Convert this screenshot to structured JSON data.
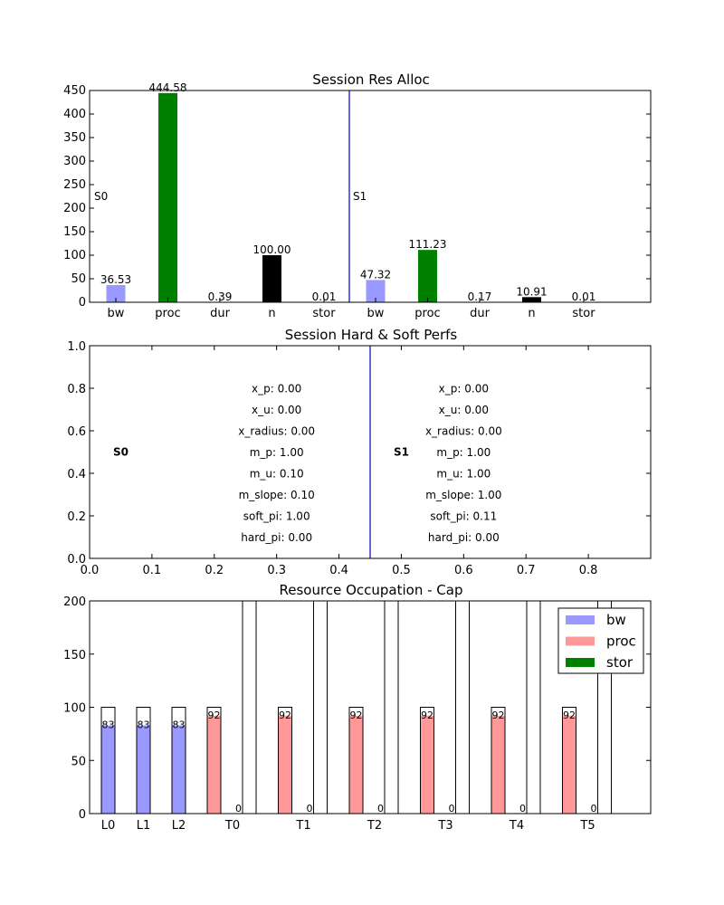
{
  "chart_data": [
    {
      "type": "bar",
      "title": "Session Res Alloc",
      "ylim": [
        0,
        450
      ],
      "yticks": [
        0,
        50,
        100,
        150,
        200,
        250,
        300,
        350,
        400,
        450
      ],
      "grid": false,
      "groups": [
        {
          "label": "S0",
          "bars": [
            {
              "category": "bw",
              "value": 36.53,
              "label": "36.53",
              "color": "#9999ff"
            },
            {
              "category": "proc",
              "value": 444.58,
              "label": "444.58",
              "color": "#008000"
            },
            {
              "category": "dur",
              "value": 0.39,
              "label": "0.39",
              "color": "#ff0000"
            },
            {
              "category": "n",
              "value": 100.0,
              "label": "100.00",
              "color": "#000000"
            },
            {
              "category": "stor",
              "value": 0.01,
              "label": "0.01",
              "color": "#008000"
            }
          ]
        },
        {
          "label": "S1",
          "bars": [
            {
              "category": "bw",
              "value": 47.32,
              "label": "47.32",
              "color": "#9999ff"
            },
            {
              "category": "proc",
              "value": 111.23,
              "label": "111.23",
              "color": "#008000"
            },
            {
              "category": "dur",
              "value": 0.17,
              "label": "0.17",
              "color": "#ff0000"
            },
            {
              "category": "n",
              "value": 10.91,
              "label": "10.91",
              "color": "#000000"
            },
            {
              "category": "stor",
              "value": 0.01,
              "label": "0.01",
              "color": "#008000"
            }
          ]
        }
      ],
      "separator_color": "#0000cc"
    },
    {
      "type": "table",
      "title": "Session Hard & Soft Perfs",
      "xlim": [
        0,
        0.9
      ],
      "ylim": [
        0,
        1.0
      ],
      "xticks": [
        "0.0",
        "0.1",
        "0.2",
        "0.3",
        "0.4",
        "0.5",
        "0.6",
        "0.7",
        "0.8"
      ],
      "yticks": [
        "0.0",
        "0.2",
        "0.4",
        "0.6",
        "0.8",
        "1.0"
      ],
      "separator_x": 0.45,
      "separator_color": "#0000cc",
      "sessions": [
        {
          "label": "S0",
          "label_x": 0.05,
          "text_x": 0.3,
          "lines": [
            "x_p: 0.00",
            "x_u: 0.00",
            "x_radius: 0.00",
            "m_p: 1.00",
            "m_u: 0.10",
            "m_slope: 0.10",
            "soft_pi: 1.00",
            "hard_pi: 0.00"
          ]
        },
        {
          "label": "S1",
          "label_x": 0.5,
          "text_x": 0.6,
          "lines": [
            "x_p: 0.00",
            "x_u: 0.00",
            "x_radius: 0.00",
            "m_p: 1.00",
            "m_u: 1.00",
            "m_slope: 1.00",
            "soft_pi: 0.11",
            "hard_pi: 0.00"
          ]
        }
      ]
    },
    {
      "type": "bar",
      "title": "Resource Occupation - Cap",
      "ylim": [
        0,
        200
      ],
      "yticks": [
        0,
        50,
        100,
        150,
        200
      ],
      "grid": false,
      "legend": {
        "position": "top-right",
        "entries": [
          {
            "name": "bw",
            "color": "#9999ff"
          },
          {
            "name": "proc",
            "color": "#ff9999"
          },
          {
            "name": "stor",
            "color": "#008000"
          }
        ]
      },
      "categories": [
        "L0",
        "L1",
        "L2",
        "T0",
        "T1",
        "T2",
        "T3",
        "T4",
        "T5"
      ],
      "links": [
        {
          "name": "L0",
          "cap": 100,
          "used": 83,
          "label": "83"
        },
        {
          "name": "L1",
          "cap": 100,
          "used": 83,
          "label": "83"
        },
        {
          "name": "L2",
          "cap": 100,
          "used": 83,
          "label": "83"
        }
      ],
      "nodes": [
        {
          "name": "T0",
          "proc_cap": 100,
          "proc_used": 92,
          "proc_label": "92",
          "stor_cap": 200,
          "stor_used": 0,
          "stor_label": "0"
        },
        {
          "name": "T1",
          "proc_cap": 100,
          "proc_used": 92,
          "proc_label": "92",
          "stor_cap": 200,
          "stor_used": 0,
          "stor_label": "0"
        },
        {
          "name": "T2",
          "proc_cap": 100,
          "proc_used": 92,
          "proc_label": "92",
          "stor_cap": 200,
          "stor_used": 0,
          "stor_label": "0"
        },
        {
          "name": "T3",
          "proc_cap": 100,
          "proc_used": 92,
          "proc_label": "92",
          "stor_cap": 200,
          "stor_used": 0,
          "stor_label": "0"
        },
        {
          "name": "T4",
          "proc_cap": 100,
          "proc_used": 92,
          "proc_label": "92",
          "stor_cap": 200,
          "stor_used": 0,
          "stor_label": "0"
        },
        {
          "name": "T5",
          "proc_cap": 100,
          "proc_used": 92,
          "proc_label": "92",
          "stor_cap": 200,
          "stor_used": 0,
          "stor_label": "0"
        }
      ]
    }
  ]
}
